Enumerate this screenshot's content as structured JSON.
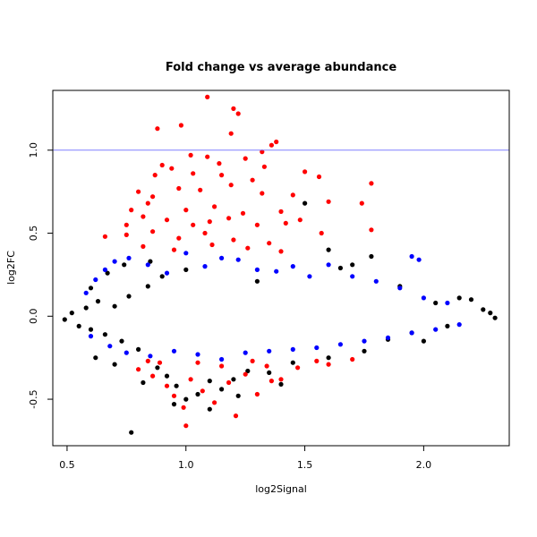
{
  "chart_data": {
    "type": "scatter",
    "title": "Fold change vs average abundance",
    "xlabel": "log2Signal",
    "ylabel": "log2FC",
    "xlim": [
      0.44,
      2.36
    ],
    "ylim": [
      -0.78,
      1.36
    ],
    "x_ticks": [
      0.5,
      1.0,
      1.5,
      2.0
    ],
    "x_tick_labels": [
      "0.5",
      "1.0",
      "1.5",
      "2.0"
    ],
    "y_ticks": [
      -0.5,
      0.0,
      0.5,
      1.0
    ],
    "y_tick_labels": [
      "-0.5",
      "0.0",
      "0.5",
      "1.0"
    ],
    "grid": false,
    "reference_line": {
      "y": 1.0,
      "color": "#8080ff"
    },
    "series": [
      {
        "color": "#000000",
        "description": "dense band centered on 0 plus scattered low-signal and high-signal points",
        "points": [
          [
            0.49,
            -0.02
          ],
          [
            0.52,
            0.02
          ],
          [
            0.55,
            -0.06
          ],
          [
            0.58,
            0.05
          ],
          [
            0.6,
            -0.08
          ],
          [
            0.63,
            0.09
          ],
          [
            0.66,
            -0.11
          ],
          [
            0.7,
            0.06
          ],
          [
            0.73,
            -0.15
          ],
          [
            0.76,
            0.12
          ],
          [
            0.8,
            -0.2
          ],
          [
            0.84,
            0.18
          ],
          [
            0.88,
            -0.31
          ],
          [
            0.92,
            -0.36
          ],
          [
            0.96,
            -0.42
          ],
          [
            1.0,
            -0.5
          ],
          [
            1.05,
            -0.47
          ],
          [
            1.1,
            -0.39
          ],
          [
            1.15,
            -0.44
          ],
          [
            1.2,
            -0.38
          ],
          [
            1.26,
            -0.33
          ],
          [
            0.9,
            0.24
          ],
          [
            1.0,
            0.28
          ],
          [
            1.3,
            0.21
          ],
          [
            1.45,
            -0.28
          ],
          [
            1.6,
            -0.25
          ],
          [
            1.75,
            -0.21
          ],
          [
            1.85,
            -0.14
          ],
          [
            1.95,
            -0.1
          ],
          [
            2.05,
            0.08
          ],
          [
            2.15,
            0.11
          ],
          [
            2.25,
            0.04
          ],
          [
            2.28,
            0.02
          ],
          [
            2.3,
            -0.01
          ],
          [
            0.77,
            -0.7
          ],
          [
            1.5,
            0.68
          ],
          [
            1.4,
            -0.41
          ],
          [
            1.78,
            0.36
          ],
          [
            1.9,
            0.18
          ],
          [
            2.1,
            -0.06
          ],
          [
            0.62,
            -0.25
          ],
          [
            0.7,
            -0.29
          ],
          [
            0.82,
            -0.4
          ],
          [
            0.95,
            -0.53
          ],
          [
            1.1,
            -0.56
          ],
          [
            1.22,
            -0.48
          ],
          [
            1.35,
            -0.34
          ],
          [
            1.65,
            0.29
          ],
          [
            0.6,
            0.17
          ],
          [
            0.67,
            0.26
          ],
          [
            0.74,
            0.31
          ],
          [
            0.85,
            0.33
          ],
          [
            1.6,
            0.4
          ],
          [
            1.7,
            0.31
          ],
          [
            2.0,
            -0.15
          ],
          [
            2.2,
            0.1
          ]
        ]
      },
      {
        "color": "#0000ff",
        "description": "moderate fold changes between roughly -0.27 and 0.38",
        "points": [
          [
            0.58,
            0.14
          ],
          [
            0.62,
            0.22
          ],
          [
            0.66,
            0.28
          ],
          [
            0.7,
            0.33
          ],
          [
            0.76,
            0.35
          ],
          [
            0.84,
            0.31
          ],
          [
            0.92,
            0.26
          ],
          [
            1.0,
            0.38
          ],
          [
            1.08,
            0.3
          ],
          [
            1.15,
            0.35
          ],
          [
            1.22,
            0.34
          ],
          [
            1.3,
            0.28
          ],
          [
            1.38,
            0.27
          ],
          [
            1.45,
            0.3
          ],
          [
            1.52,
            0.24
          ],
          [
            1.6,
            0.31
          ],
          [
            1.7,
            0.24
          ],
          [
            1.8,
            0.21
          ],
          [
            1.9,
            0.17
          ],
          [
            2.0,
            0.11
          ],
          [
            2.1,
            0.08
          ],
          [
            0.6,
            -0.12
          ],
          [
            0.68,
            -0.18
          ],
          [
            0.75,
            -0.22
          ],
          [
            0.85,
            -0.24
          ],
          [
            0.95,
            -0.21
          ],
          [
            1.05,
            -0.23
          ],
          [
            1.15,
            -0.26
          ],
          [
            1.25,
            -0.22
          ],
          [
            1.35,
            -0.21
          ],
          [
            1.45,
            -0.2
          ],
          [
            1.55,
            -0.19
          ],
          [
            1.65,
            -0.17
          ],
          [
            1.75,
            -0.15
          ],
          [
            1.85,
            -0.13
          ],
          [
            1.95,
            -0.1
          ],
          [
            2.05,
            -0.08
          ],
          [
            2.15,
            -0.05
          ],
          [
            1.95,
            0.36
          ],
          [
            1.98,
            0.34
          ]
        ]
      },
      {
        "color": "#ff0000",
        "description": "large positive fold changes (about 0.38 to 1.33) and large negative fold changes (about -0.25 to -0.66)",
        "points": [
          [
            1.09,
            1.32
          ],
          [
            1.2,
            1.25
          ],
          [
            1.22,
            1.22
          ],
          [
            0.88,
            1.13
          ],
          [
            0.98,
            1.15
          ],
          [
            1.19,
            1.1
          ],
          [
            1.36,
            1.03
          ],
          [
            1.38,
            1.05
          ],
          [
            1.02,
            0.97
          ],
          [
            1.09,
            0.96
          ],
          [
            1.25,
            0.95
          ],
          [
            1.32,
            0.99
          ],
          [
            0.9,
            0.91
          ],
          [
            0.94,
            0.89
          ],
          [
            1.14,
            0.92
          ],
          [
            1.33,
            0.9
          ],
          [
            0.87,
            0.85
          ],
          [
            1.03,
            0.86
          ],
          [
            1.15,
            0.85
          ],
          [
            1.28,
            0.82
          ],
          [
            1.5,
            0.87
          ],
          [
            1.56,
            0.84
          ],
          [
            1.78,
            0.8
          ],
          [
            0.8,
            0.75
          ],
          [
            0.86,
            0.72
          ],
          [
            0.97,
            0.77
          ],
          [
            1.06,
            0.76
          ],
          [
            1.19,
            0.79
          ],
          [
            1.32,
            0.74
          ],
          [
            1.45,
            0.73
          ],
          [
            1.6,
            0.69
          ],
          [
            0.77,
            0.64
          ],
          [
            0.84,
            0.68
          ],
          [
            1.0,
            0.64
          ],
          [
            1.12,
            0.66
          ],
          [
            1.24,
            0.62
          ],
          [
            1.4,
            0.63
          ],
          [
            1.74,
            0.68
          ],
          [
            0.75,
            0.55
          ],
          [
            0.82,
            0.6
          ],
          [
            0.92,
            0.58
          ],
          [
            1.03,
            0.55
          ],
          [
            1.1,
            0.57
          ],
          [
            1.18,
            0.59
          ],
          [
            1.3,
            0.55
          ],
          [
            1.42,
            0.56
          ],
          [
            1.48,
            0.58
          ],
          [
            0.66,
            0.48
          ],
          [
            0.75,
            0.49
          ],
          [
            0.86,
            0.51
          ],
          [
            0.97,
            0.47
          ],
          [
            1.08,
            0.5
          ],
          [
            1.2,
            0.46
          ],
          [
            1.35,
            0.44
          ],
          [
            1.57,
            0.5
          ],
          [
            1.78,
            0.52
          ],
          [
            0.82,
            0.42
          ],
          [
            0.95,
            0.4
          ],
          [
            1.11,
            0.43
          ],
          [
            1.26,
            0.41
          ],
          [
            1.4,
            0.39
          ],
          [
            0.8,
            -0.32
          ],
          [
            0.86,
            -0.36
          ],
          [
            0.92,
            -0.42
          ],
          [
            0.95,
            -0.48
          ],
          [
            0.99,
            -0.55
          ],
          [
            1.02,
            -0.38
          ],
          [
            1.07,
            -0.45
          ],
          [
            1.12,
            -0.52
          ],
          [
            1.18,
            -0.4
          ],
          [
            1.21,
            -0.6
          ],
          [
            1.25,
            -0.35
          ],
          [
            1.3,
            -0.47
          ],
          [
            1.34,
            -0.3
          ],
          [
            1.4,
            -0.38
          ],
          [
            1.47,
            -0.31
          ],
          [
            1.55,
            -0.27
          ],
          [
            0.84,
            -0.27
          ],
          [
            1.0,
            -0.66
          ],
          [
            1.05,
            -0.28
          ],
          [
            1.15,
            -0.3
          ],
          [
            1.28,
            -0.27
          ],
          [
            1.6,
            -0.29
          ],
          [
            1.7,
            -0.26
          ],
          [
            0.89,
            -0.28
          ],
          [
            1.36,
            -0.39
          ]
        ]
      }
    ]
  }
}
